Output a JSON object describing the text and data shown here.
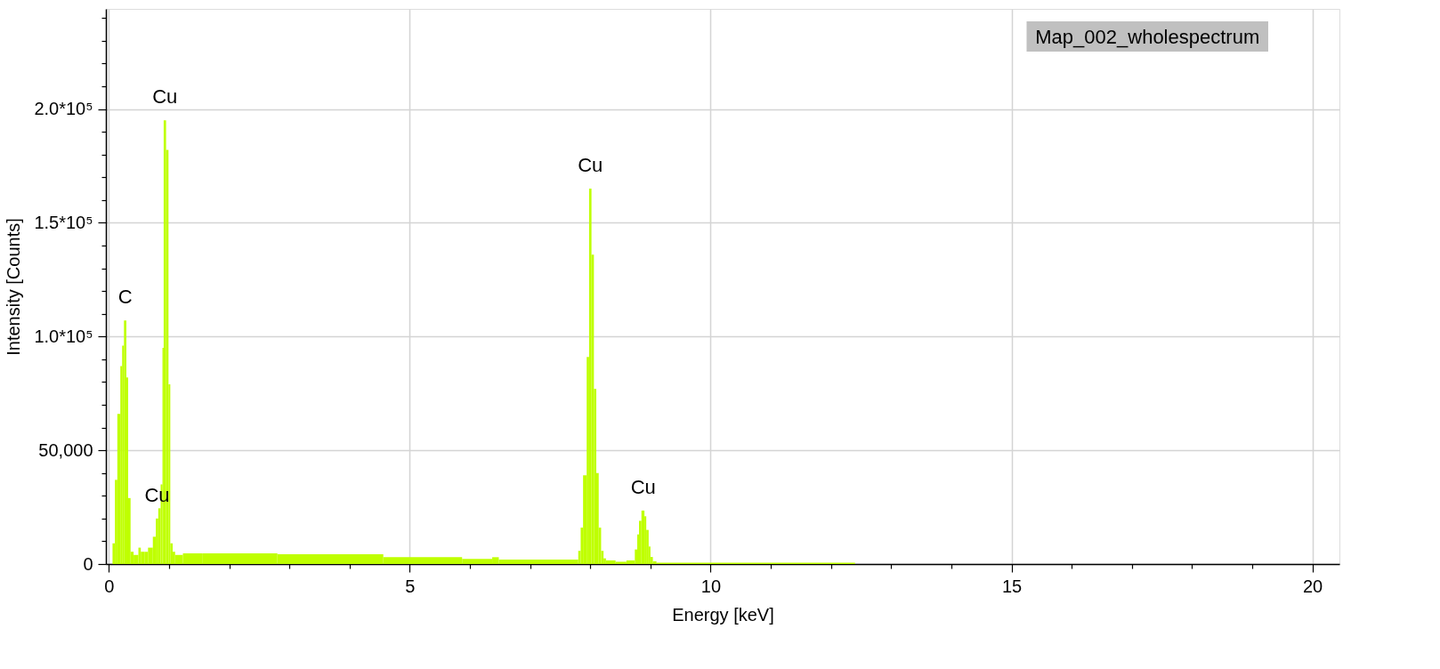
{
  "chart_data": {
    "type": "histogram",
    "xlabel": "Energy [keV]",
    "ylabel": "Intensity [Counts]",
    "xlim": [
      -0.05,
      20.45
    ],
    "ylim": [
      0,
      244000
    ],
    "xticks": [
      0,
      {
        "value": 1,
        "label": null
      },
      {
        "value": 2,
        "label": null
      },
      {
        "value": 3,
        "label": null
      },
      {
        "value": 4,
        "label": null
      },
      5,
      {
        "value": 6,
        "label": null
      },
      {
        "value": 7,
        "label": null
      },
      {
        "value": 8,
        "label": null
      },
      {
        "value": 9,
        "label": null
      },
      10,
      {
        "value": 11,
        "label": null
      },
      {
        "value": 12,
        "label": null
      },
      {
        "value": 13,
        "label": null
      },
      {
        "value": 14,
        "label": null
      },
      15,
      {
        "value": 16,
        "label": null
      },
      {
        "value": 17,
        "label": null
      },
      {
        "value": 18,
        "label": null
      },
      {
        "value": 19,
        "label": null
      },
      20
    ],
    "yticks": [
      0,
      {
        "value": 10000,
        "label": null
      },
      {
        "value": 20000,
        "label": null
      },
      {
        "value": 30000,
        "label": null
      },
      {
        "value": 40000,
        "label": null
      },
      {
        "value": 50000,
        "label": "50,000"
      },
      {
        "value": 60000,
        "label": null
      },
      {
        "value": 70000,
        "label": null
      },
      {
        "value": 80000,
        "label": null
      },
      {
        "value": 90000,
        "label": null
      },
      {
        "value": 100000,
        "label": "1.0*10⁵"
      },
      {
        "value": 110000,
        "label": null
      },
      {
        "value": 120000,
        "label": null
      },
      {
        "value": 130000,
        "label": null
      },
      {
        "value": 140000,
        "label": null
      },
      {
        "value": 150000,
        "label": "1.5*10⁵"
      },
      {
        "value": 160000,
        "label": null
      },
      {
        "value": 170000,
        "label": null
      },
      {
        "value": 180000,
        "label": null
      },
      {
        "value": 190000,
        "label": null
      },
      {
        "value": 200000,
        "label": "2.0*10⁵"
      },
      {
        "value": 210000,
        "label": null
      },
      {
        "value": 220000,
        "label": null
      },
      {
        "value": 230000,
        "label": null
      },
      {
        "value": 240000,
        "label": null
      }
    ],
    "grid": true,
    "legend": "top right",
    "bins": [
      0.06,
      0.1,
      0.14,
      0.19,
      0.22,
      0.25,
      0.29,
      0.32,
      0.36,
      0.41,
      0.49,
      0.53,
      0.59,
      0.65,
      0.73,
      0.78,
      0.82,
      0.86,
      0.89,
      0.91,
      0.95,
      0.99,
      1.02,
      1.06,
      1.1,
      1.23,
      1.55,
      2.8,
      4.56,
      5.87,
      6.37,
      6.48,
      7.8,
      7.84,
      7.88,
      7.94,
      7.98,
      8.02,
      8.06,
      8.1,
      8.14,
      8.18,
      8.22,
      8.26,
      8.42,
      8.6,
      8.74,
      8.78,
      8.81,
      8.85,
      8.9,
      8.93,
      8.97,
      9.0,
      9.04,
      9.1,
      12.4
    ],
    "series": [
      {
        "name": "Map_002_wholespectrum",
        "color": "#bfff00",
        "values": [
          9100,
          37000,
          66000,
          87000,
          96000,
          107000,
          82000,
          29000,
          5400,
          4000,
          7200,
          5400,
          5400,
          7200,
          12000,
          20000,
          24500,
          35000,
          95000,
          195000,
          182000,
          79000,
          9100,
          5400,
          4000,
          4700,
          4700,
          4300,
          3000,
          2200,
          3000,
          2000,
          5800,
          16000,
          39000,
          91000,
          165000,
          136000,
          77000,
          40000,
          16000,
          5800,
          2500,
          1600,
          1000,
          1600,
          6400,
          13000,
          19000,
          23500,
          21000,
          15000,
          7700,
          3100,
          1200,
          600
        ]
      }
    ],
    "annotations": [
      {
        "text": "C",
        "x": 0.27,
        "y": 107000
      },
      {
        "text": "Cu",
        "x": 0.8,
        "y": 20000
      },
      {
        "text": "Cu",
        "x": 0.93,
        "y": 195000
      },
      {
        "text": "Cu",
        "x": 8.0,
        "y": 165000
      },
      {
        "text": "Cu",
        "x": 8.88,
        "y": 23500
      }
    ]
  }
}
